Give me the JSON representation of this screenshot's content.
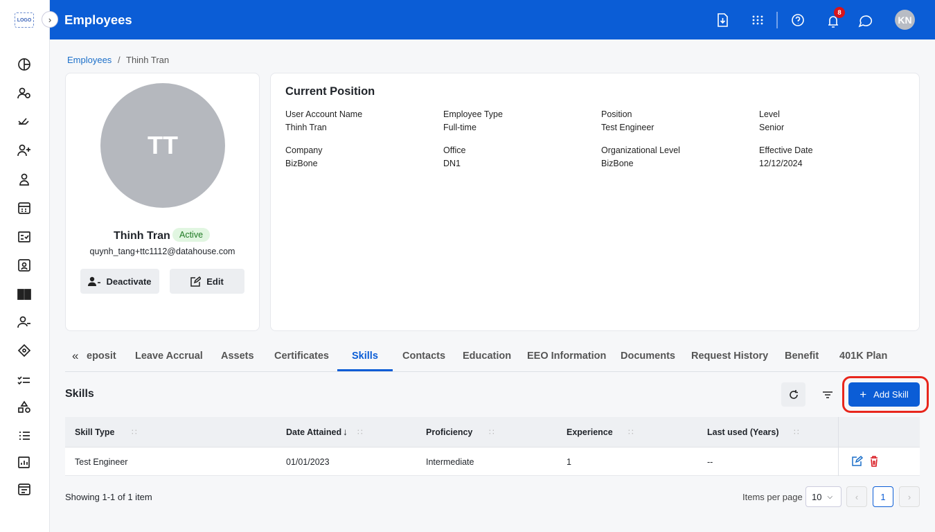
{
  "header": {
    "logo": "LOGO",
    "title": "Employees",
    "notification_count": "8",
    "avatar": "KN"
  },
  "breadcrumb": [
    "Employees",
    "Thinh Tran"
  ],
  "profile": {
    "initials": "TT",
    "name": "Thinh Tran",
    "status": "Active",
    "email": "quynh_tang+ttc1112@datahouse.com",
    "actions": [
      "Deactivate",
      "Edit"
    ]
  },
  "position": {
    "title": "Current Position",
    "fields": [
      {
        "label": "User Account Name",
        "value": "Thinh Tran"
      },
      {
        "label": "Employee Type",
        "value": "Full-time"
      },
      {
        "label": "Position",
        "value": "Test Engineer"
      },
      {
        "label": "Level",
        "value": "Senior"
      },
      {
        "label": "Company",
        "value": "BizBone"
      },
      {
        "label": "Office",
        "value": "DN1"
      },
      {
        "label": "Organizational Level",
        "value": "BizBone"
      },
      {
        "label": "Effective Date",
        "value": "12/12/2024"
      }
    ]
  },
  "tabs": [
    "eposit",
    "Leave Accrual",
    "Assets",
    "Certificates",
    "Skills",
    "Contacts",
    "Education",
    "EEO Information",
    "Documents",
    "Request History",
    "Benefit",
    "401K Plan"
  ],
  "skills": {
    "title": "Skills",
    "add_button": "Add Skill",
    "table": {
      "columns": [
        "Skill Type",
        "Date Attained",
        "Proficiency",
        "Experience",
        "Last used (Years)"
      ],
      "rows": [
        [
          "Test Engineer",
          "01/01/2023",
          "Intermediate",
          "1",
          "--"
        ]
      ]
    },
    "footer": {
      "summary": "Showing 1-1 of 1 item",
      "items_per_page_label": "Items per page",
      "items_per_page": "10",
      "current_page": "1"
    }
  }
}
